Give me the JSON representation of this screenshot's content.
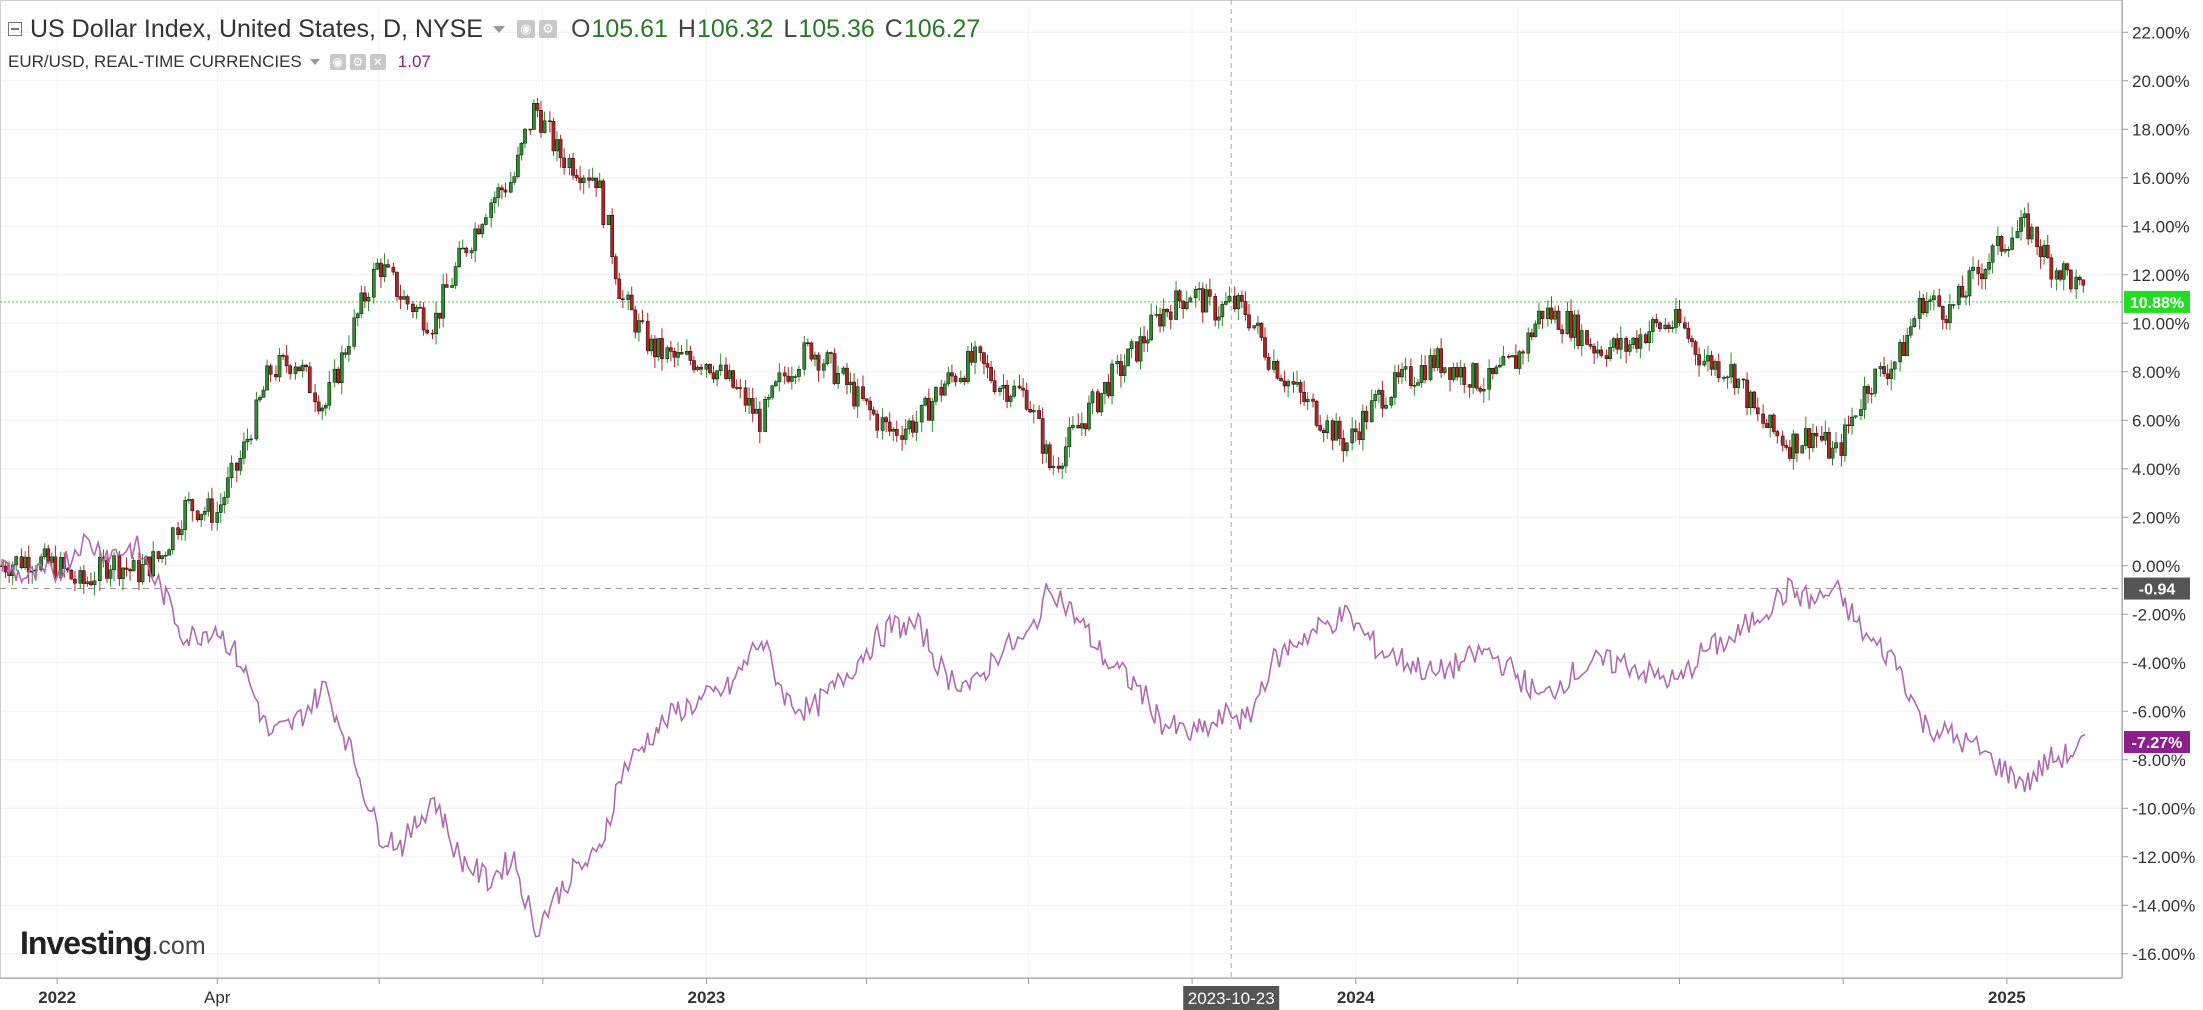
{
  "legend": {
    "main_title": "US Dollar Index, United States, D, NYSE",
    "open_label": "O",
    "open": "105.61",
    "high_label": "H",
    "high": "106.32",
    "low_label": "L",
    "low": "105.36",
    "close_label": "C",
    "close": "106.27",
    "compare_title": "EUR/USD, REAL-TIME CURRENCIES",
    "compare_value": "1.07"
  },
  "logo": {
    "name": "Investing",
    "suffix": ".com"
  },
  "colors": {
    "up": "#2e8b2e",
    "down": "#b22222",
    "compare_line": "#b06ab0",
    "last_value_green": "#22dd22",
    "compare_badge": "#8b1f8b",
    "zero_badge": "#555555"
  },
  "chart_data": {
    "type": "line",
    "title": "US Dollar Index, United States, D, NYSE",
    "ylabel": "",
    "ylim": [
      -17,
      23
    ],
    "yticks": [
      "22.00%",
      "20.00%",
      "18.00%",
      "16.00%",
      "14.00%",
      "12.00%",
      "10.00%",
      "8.00%",
      "6.00%",
      "4.00%",
      "2.00%",
      "0.00%",
      "-2.00%",
      "-4.00%",
      "-6.00%",
      "-8.00%",
      "-10.00%",
      "-12.00%",
      "-14.00%",
      "-16.00%"
    ],
    "xlim": [
      "2021-12-01",
      "2025-02-28"
    ],
    "xticks": [
      {
        "date": "2022-01-01",
        "label": "2022"
      },
      {
        "date": "2022-04-01",
        "label": "Apr"
      },
      {
        "date": "2023-01-01",
        "label": "2023"
      },
      {
        "date": "2024-01-01",
        "label": "2024"
      },
      {
        "date": "2025-01-01",
        "label": "2025"
      }
    ],
    "crosshair": {
      "date": "2023-10-23",
      "label": "2023-10-23"
    },
    "grid": true,
    "series": [
      {
        "name": "US Dollar Index, United States, D, NYSE",
        "style": "candlestick",
        "points": [
          [
            "2021-12-01",
            0.0
          ],
          [
            "2021-12-15",
            0.3
          ],
          [
            "2022-01-01",
            0.0
          ],
          [
            "2022-01-15",
            -0.8
          ],
          [
            "2022-02-01",
            0.2
          ],
          [
            "2022-02-15",
            -0.3
          ],
          [
            "2022-03-01",
            0.4
          ],
          [
            "2022-03-15",
            2.5
          ],
          [
            "2022-04-01",
            2.2
          ],
          [
            "2022-04-15",
            4.5
          ],
          [
            "2022-05-01",
            8.0
          ],
          [
            "2022-05-15",
            8.5
          ],
          [
            "2022-06-01",
            6.5
          ],
          [
            "2022-06-15",
            9.5
          ],
          [
            "2022-07-01",
            12.5
          ],
          [
            "2022-07-15",
            11.0
          ],
          [
            "2022-08-01",
            10.0
          ],
          [
            "2022-08-15",
            12.5
          ],
          [
            "2022-09-01",
            15.0
          ],
          [
            "2022-09-15",
            16.0
          ],
          [
            "2022-09-27",
            19.0
          ],
          [
            "2022-10-10",
            17.0
          ],
          [
            "2022-10-20",
            16.5
          ],
          [
            "2022-11-01",
            16.0
          ],
          [
            "2022-11-15",
            11.0
          ],
          [
            "2022-12-01",
            9.0
          ],
          [
            "2022-12-15",
            8.5
          ],
          [
            "2023-01-01",
            8.5
          ],
          [
            "2023-01-15",
            7.5
          ],
          [
            "2023-02-01",
            6.0
          ],
          [
            "2023-02-15",
            8.0
          ],
          [
            "2023-03-01",
            9.0
          ],
          [
            "2023-03-15",
            8.0
          ],
          [
            "2023-04-01",
            6.5
          ],
          [
            "2023-04-15",
            5.5
          ],
          [
            "2023-05-01",
            6.0
          ],
          [
            "2023-05-15",
            7.5
          ],
          [
            "2023-06-01",
            8.5
          ],
          [
            "2023-06-15",
            7.5
          ],
          [
            "2023-07-01",
            7.0
          ],
          [
            "2023-07-14",
            4.0
          ],
          [
            "2023-08-01",
            6.0
          ],
          [
            "2023-08-15",
            7.5
          ],
          [
            "2023-09-01",
            9.0
          ],
          [
            "2023-09-15",
            10.5
          ],
          [
            "2023-10-01",
            11.3
          ],
          [
            "2023-10-15",
            10.5
          ],
          [
            "2023-10-23",
            10.8
          ],
          [
            "2023-11-01",
            10.5
          ],
          [
            "2023-11-15",
            8.5
          ],
          [
            "2023-12-01",
            7.0
          ],
          [
            "2023-12-27",
            5.0
          ],
          [
            "2024-01-15",
            7.0
          ],
          [
            "2024-02-01",
            7.8
          ],
          [
            "2024-02-15",
            8.5
          ],
          [
            "2024-03-01",
            8.0
          ],
          [
            "2024-03-15",
            7.5
          ],
          [
            "2024-04-01",
            8.5
          ],
          [
            "2024-04-15",
            10.5
          ],
          [
            "2024-05-01",
            10.0
          ],
          [
            "2024-05-15",
            9.0
          ],
          [
            "2024-06-01",
            9.0
          ],
          [
            "2024-06-15",
            9.8
          ],
          [
            "2024-07-01",
            10.0
          ],
          [
            "2024-07-15",
            8.5
          ],
          [
            "2024-08-01",
            8.0
          ],
          [
            "2024-08-15",
            6.0
          ],
          [
            "2024-09-01",
            5.0
          ],
          [
            "2024-09-15",
            5.5
          ],
          [
            "2024-09-27",
            4.5
          ],
          [
            "2024-10-15",
            7.5
          ],
          [
            "2024-11-01",
            8.5
          ],
          [
            "2024-11-15",
            11.0
          ],
          [
            "2024-12-01",
            10.5
          ],
          [
            "2024-12-15",
            12.0
          ],
          [
            "2025-01-01",
            13.5
          ],
          [
            "2025-01-13",
            14.0
          ],
          [
            "2025-01-25",
            12.5
          ],
          [
            "2025-02-05",
            12.0
          ],
          [
            "2025-02-15",
            10.88
          ]
        ]
      },
      {
        "name": "EUR/USD, REAL-TIME CURRENCIES",
        "style": "line",
        "points": [
          [
            "2021-12-01",
            0.0
          ],
          [
            "2021-12-15",
            -0.5
          ],
          [
            "2022-01-01",
            -0.3
          ],
          [
            "2022-01-15",
            1.0
          ],
          [
            "2022-02-01",
            0.5
          ],
          [
            "2022-02-15",
            0.8
          ],
          [
            "2022-03-01",
            -1.0
          ],
          [
            "2022-03-15",
            -3.0
          ],
          [
            "2022-04-01",
            -2.5
          ],
          [
            "2022-04-15",
            -4.0
          ],
          [
            "2022-05-01",
            -7.0
          ],
          [
            "2022-05-15",
            -6.5
          ],
          [
            "2022-06-01",
            -5.0
          ],
          [
            "2022-06-15",
            -7.5
          ],
          [
            "2022-07-01",
            -11.0
          ],
          [
            "2022-07-15",
            -11.5
          ],
          [
            "2022-08-01",
            -9.5
          ],
          [
            "2022-08-15",
            -12.0
          ],
          [
            "2022-09-01",
            -13.0
          ],
          [
            "2022-09-15",
            -12.0
          ],
          [
            "2022-09-27",
            -15.0
          ],
          [
            "2022-10-10",
            -13.5
          ],
          [
            "2022-10-20",
            -12.5
          ],
          [
            "2022-11-01",
            -12.0
          ],
          [
            "2022-11-15",
            -8.5
          ],
          [
            "2022-12-01",
            -7.0
          ],
          [
            "2022-12-15",
            -6.0
          ],
          [
            "2023-01-01",
            -5.5
          ],
          [
            "2023-01-15",
            -5.0
          ],
          [
            "2023-02-01",
            -3.0
          ],
          [
            "2023-02-15",
            -5.5
          ],
          [
            "2023-03-01",
            -6.0
          ],
          [
            "2023-03-15",
            -5.0
          ],
          [
            "2023-04-01",
            -3.5
          ],
          [
            "2023-04-15",
            -2.5
          ],
          [
            "2023-05-01",
            -2.5
          ],
          [
            "2023-05-15",
            -4.5
          ],
          [
            "2023-06-01",
            -5.0
          ],
          [
            "2023-06-15",
            -3.5
          ],
          [
            "2023-07-01",
            -3.0
          ],
          [
            "2023-07-14",
            -0.8
          ],
          [
            "2023-08-01",
            -2.5
          ],
          [
            "2023-08-15",
            -4.0
          ],
          [
            "2023-09-01",
            -5.0
          ],
          [
            "2023-09-15",
            -6.5
          ],
          [
            "2023-10-01",
            -7.0
          ],
          [
            "2023-10-15",
            -6.5
          ],
          [
            "2023-10-23",
            -6.0
          ],
          [
            "2023-11-01",
            -6.5
          ],
          [
            "2023-11-15",
            -4.0
          ],
          [
            "2023-12-01",
            -3.0
          ],
          [
            "2023-12-27",
            -2.0
          ],
          [
            "2024-01-15",
            -3.5
          ],
          [
            "2024-02-01",
            -4.0
          ],
          [
            "2024-02-15",
            -4.5
          ],
          [
            "2024-03-01",
            -4.0
          ],
          [
            "2024-03-15",
            -3.5
          ],
          [
            "2024-04-01",
            -4.5
          ],
          [
            "2024-04-15",
            -5.5
          ],
          [
            "2024-05-01",
            -4.5
          ],
          [
            "2024-05-15",
            -4.0
          ],
          [
            "2024-06-01",
            -4.0
          ],
          [
            "2024-06-15",
            -4.5
          ],
          [
            "2024-07-01",
            -4.8
          ],
          [
            "2024-07-15",
            -3.5
          ],
          [
            "2024-08-01",
            -3.0
          ],
          [
            "2024-08-15",
            -2.0
          ],
          [
            "2024-09-01",
            -1.0
          ],
          [
            "2024-09-15",
            -1.5
          ],
          [
            "2024-09-27",
            -1.0
          ],
          [
            "2024-10-15",
            -3.0
          ],
          [
            "2024-11-01",
            -4.0
          ],
          [
            "2024-11-15",
            -6.5
          ],
          [
            "2024-12-01",
            -7.0
          ],
          [
            "2024-12-15",
            -7.5
          ],
          [
            "2025-01-01",
            -8.5
          ],
          [
            "2025-01-13",
            -9.0
          ],
          [
            "2025-01-25",
            -8.0
          ],
          [
            "2025-02-05",
            -7.8
          ],
          [
            "2025-02-15",
            -7.27
          ]
        ]
      }
    ],
    "badges": [
      {
        "label": "10.88%",
        "value": 10.88,
        "color": "#22dd22"
      },
      {
        "label": "-0.94",
        "value": -0.94,
        "color": "#555555"
      },
      {
        "label": "-7.27%",
        "value": -7.27,
        "color": "#8b1f8b"
      }
    ]
  }
}
